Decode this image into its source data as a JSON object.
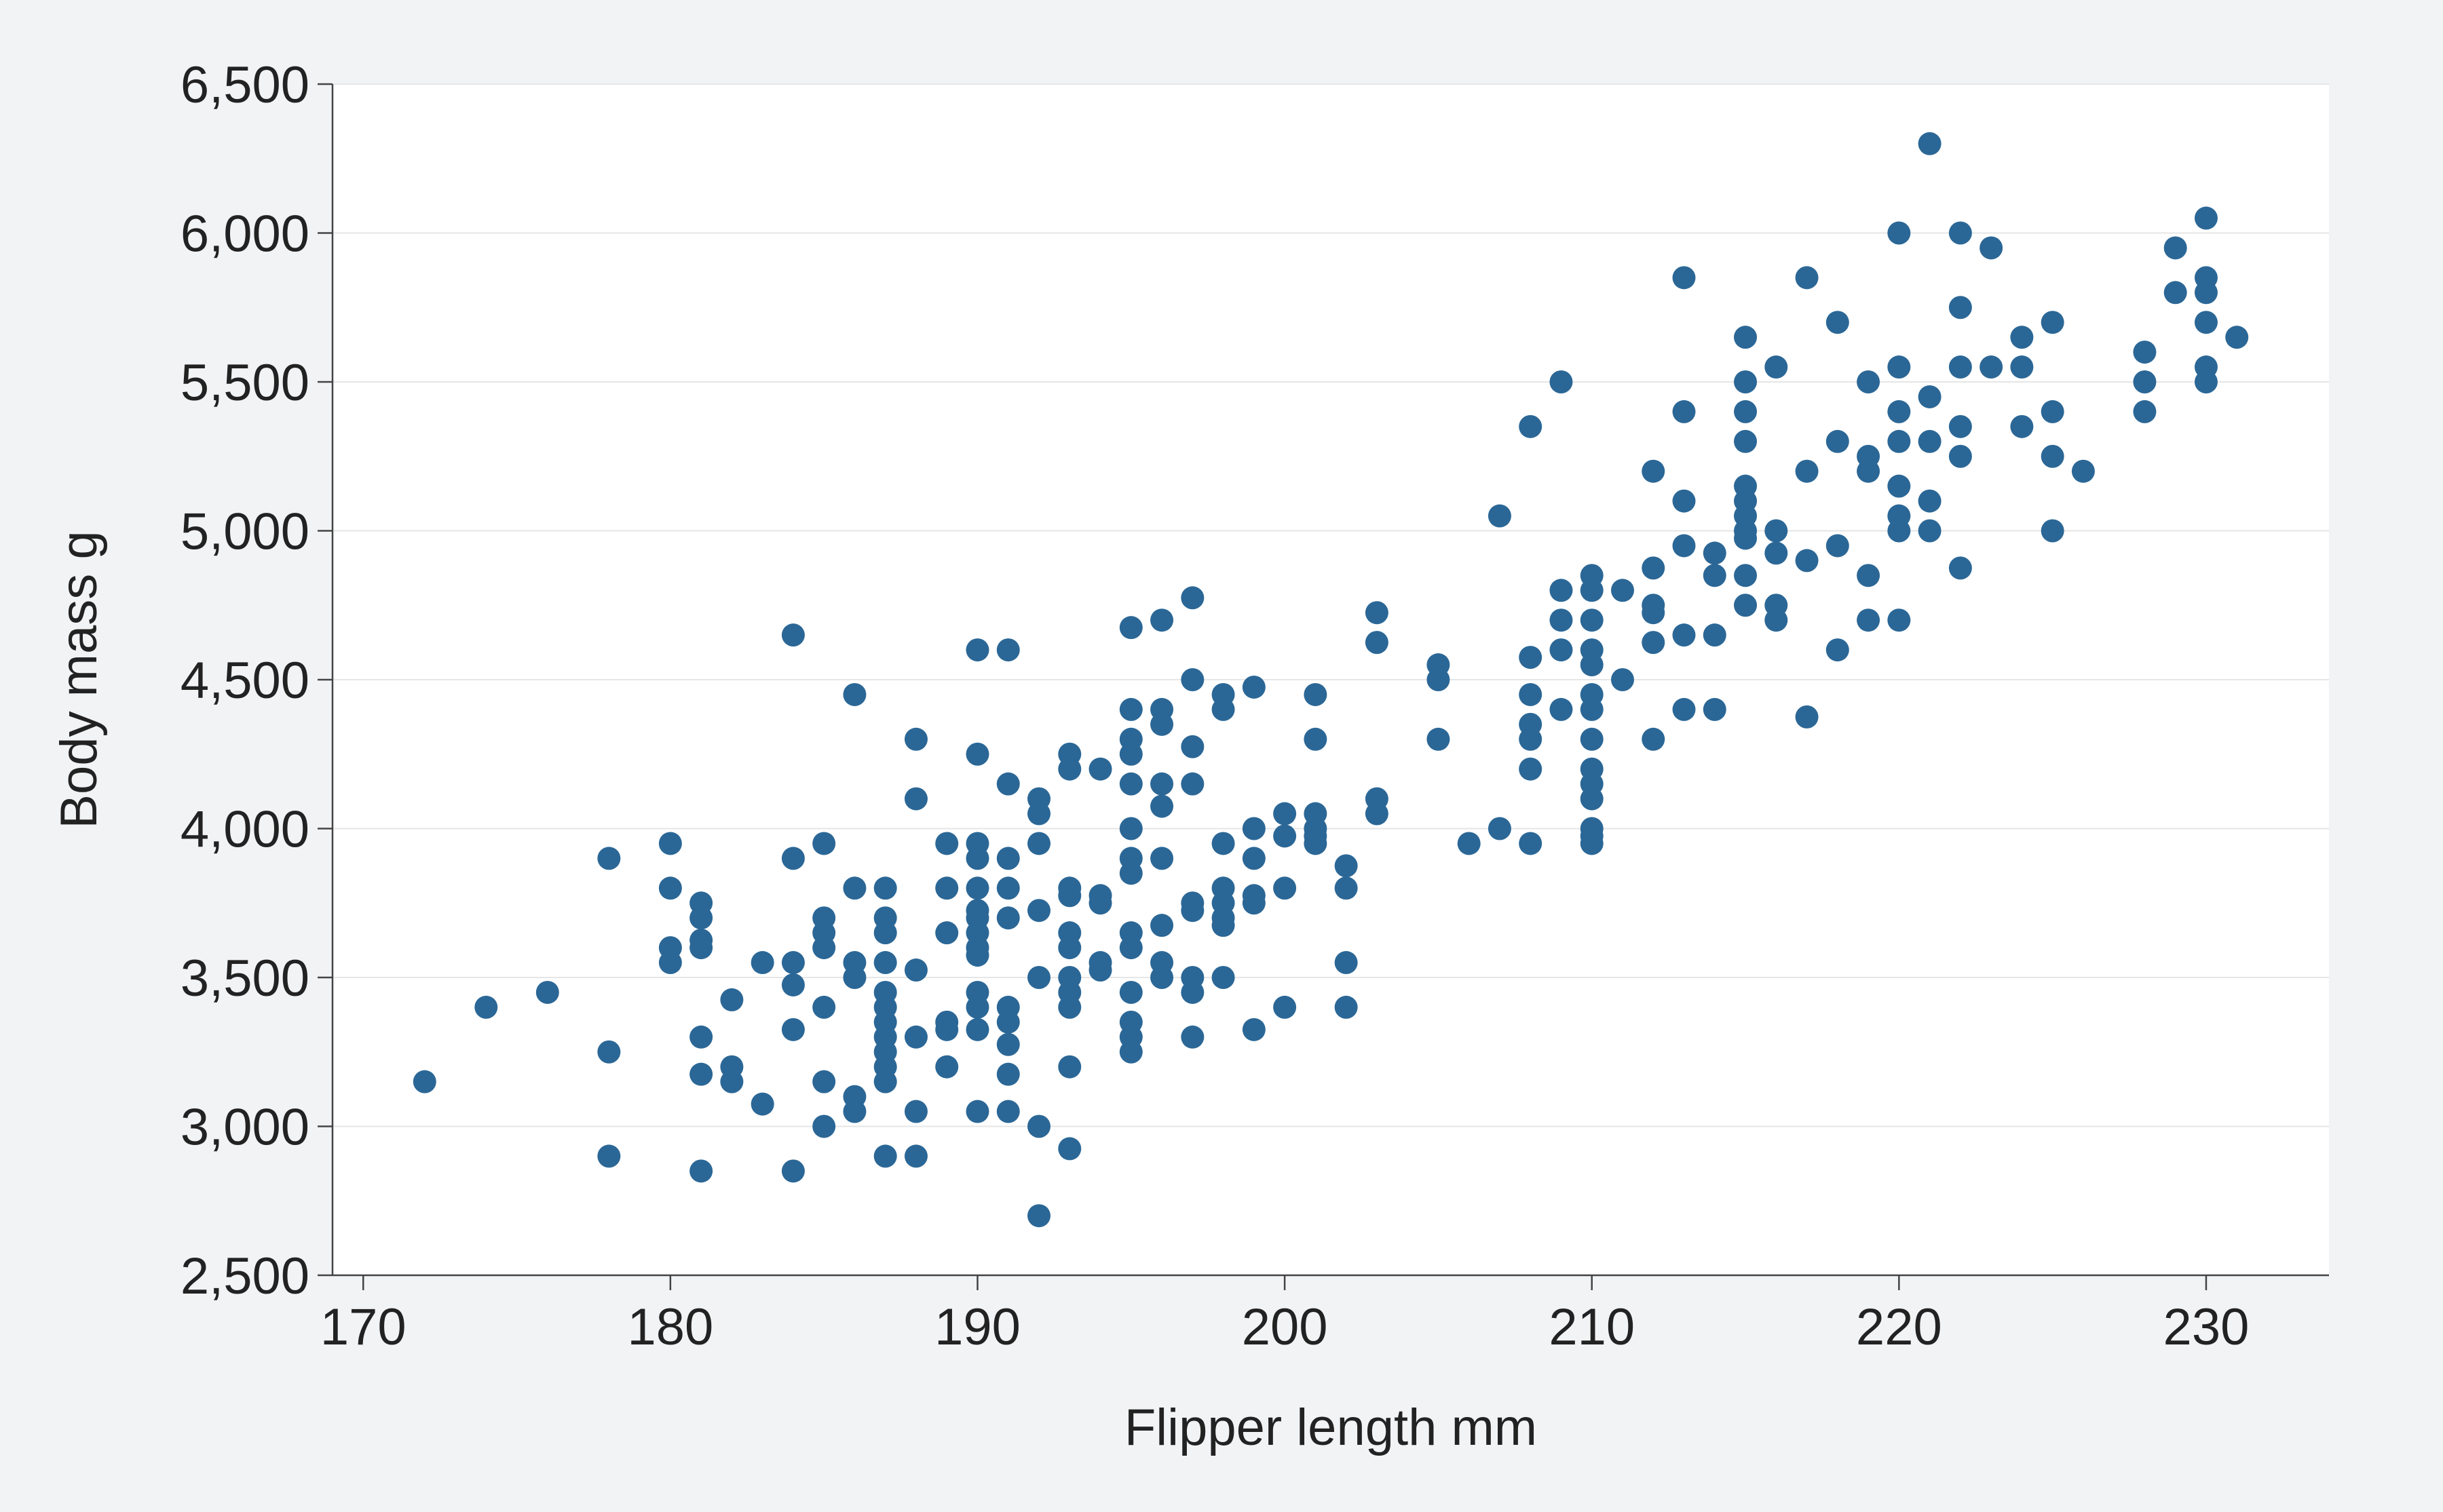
{
  "chart_data": {
    "type": "scatter",
    "title": "",
    "xlabel": "Flipper length mm",
    "ylabel": "Body mass g",
    "xlim": [
      169,
      234
    ],
    "ylim": [
      2500,
      6500
    ],
    "x_ticks": [
      170,
      180,
      190,
      200,
      210,
      220,
      230
    ],
    "y_ticks": [
      2500,
      3000,
      3500,
      4000,
      4500,
      5000,
      5500,
      6000,
      6500
    ],
    "x_tick_labels": [
      "170",
      "180",
      "190",
      "200",
      "210",
      "220",
      "230"
    ],
    "y_tick_labels": [
      "2,500",
      "3,000",
      "3,500",
      "4,000",
      "4,500",
      "5,000",
      "5,500",
      "6,000",
      "6,500"
    ],
    "grid": "horizontal",
    "legend": "none",
    "colors": {
      "marker": "#2b6796",
      "plot_background": "#ffffff",
      "figure_background": "#f2f3f5",
      "gridline": "#e6e6e6",
      "axis": "#444444"
    },
    "points": [
      [
        172,
        3150
      ],
      [
        174,
        3400
      ],
      [
        176,
        3450
      ],
      [
        178,
        3900
      ],
      [
        178,
        3250
      ],
      [
        178,
        2900
      ],
      [
        180,
        3950
      ],
      [
        180,
        3800
      ],
      [
        180,
        3600
      ],
      [
        180,
        3550
      ],
      [
        181,
        3750
      ],
      [
        181,
        3700
      ],
      [
        181,
        3625
      ],
      [
        181,
        3600
      ],
      [
        181,
        3300
      ],
      [
        181,
        3175
      ],
      [
        181,
        2850
      ],
      [
        182,
        3425
      ],
      [
        182,
        3200
      ],
      [
        182,
        3150
      ],
      [
        183,
        3550
      ],
      [
        183,
        3075
      ],
      [
        184,
        4650
      ],
      [
        184,
        3900
      ],
      [
        184,
        3550
      ],
      [
        184,
        3475
      ],
      [
        184,
        3325
      ],
      [
        184,
        2850
      ],
      [
        185,
        3950
      ],
      [
        185,
        3700
      ],
      [
        185,
        3650
      ],
      [
        185,
        3600
      ],
      [
        185,
        3400
      ],
      [
        185,
        3150
      ],
      [
        185,
        3000
      ],
      [
        186,
        4450
      ],
      [
        186,
        3800
      ],
      [
        186,
        3550
      ],
      [
        186,
        3500
      ],
      [
        186,
        3100
      ],
      [
        186,
        3050
      ],
      [
        187,
        3800
      ],
      [
        187,
        3700
      ],
      [
        187,
        3650
      ],
      [
        187,
        3550
      ],
      [
        187,
        3450
      ],
      [
        187,
        3400
      ],
      [
        187,
        3350
      ],
      [
        187,
        3300
      ],
      [
        187,
        3250
      ],
      [
        187,
        3200
      ],
      [
        187,
        3150
      ],
      [
        187,
        2900
      ],
      [
        188,
        4300
      ],
      [
        188,
        4100
      ],
      [
        188,
        3525
      ],
      [
        188,
        3300
      ],
      [
        188,
        3050
      ],
      [
        188,
        2900
      ],
      [
        189,
        3950
      ],
      [
        189,
        3800
      ],
      [
        189,
        3650
      ],
      [
        189,
        3350
      ],
      [
        189,
        3325
      ],
      [
        189,
        3200
      ],
      [
        190,
        4600
      ],
      [
        190,
        4250
      ],
      [
        190,
        3950
      ],
      [
        190,
        3900
      ],
      [
        190,
        3800
      ],
      [
        190,
        3725
      ],
      [
        190,
        3700
      ],
      [
        190,
        3650
      ],
      [
        190,
        3600
      ],
      [
        190,
        3575
      ],
      [
        190,
        3450
      ],
      [
        190,
        3400
      ],
      [
        190,
        3325
      ],
      [
        190,
        3050
      ],
      [
        191,
        4600
      ],
      [
        191,
        4150
      ],
      [
        191,
        3900
      ],
      [
        191,
        3800
      ],
      [
        191,
        3700
      ],
      [
        191,
        3400
      ],
      [
        191,
        3350
      ],
      [
        191,
        3275
      ],
      [
        191,
        3175
      ],
      [
        191,
        3050
      ],
      [
        192,
        4100
      ],
      [
        192,
        4050
      ],
      [
        192,
        3950
      ],
      [
        192,
        3725
      ],
      [
        192,
        3500
      ],
      [
        192,
        3000
      ],
      [
        192,
        2700
      ],
      [
        193,
        4250
      ],
      [
        193,
        4200
      ],
      [
        193,
        3800
      ],
      [
        193,
        3775
      ],
      [
        193,
        3650
      ],
      [
        193,
        3600
      ],
      [
        193,
        3500
      ],
      [
        193,
        3450
      ],
      [
        193,
        3400
      ],
      [
        193,
        3200
      ],
      [
        193,
        2925
      ],
      [
        194,
        4200
      ],
      [
        194,
        3775
      ],
      [
        194,
        3750
      ],
      [
        194,
        3550
      ],
      [
        194,
        3525
      ],
      [
        195,
        4675
      ],
      [
        195,
        4400
      ],
      [
        195,
        4300
      ],
      [
        195,
        4250
      ],
      [
        195,
        4150
      ],
      [
        195,
        4000
      ],
      [
        195,
        3900
      ],
      [
        195,
        3850
      ],
      [
        195,
        3650
      ],
      [
        195,
        3600
      ],
      [
        195,
        3450
      ],
      [
        195,
        3350
      ],
      [
        195,
        3300
      ],
      [
        195,
        3250
      ],
      [
        196,
        4700
      ],
      [
        196,
        4400
      ],
      [
        196,
        4350
      ],
      [
        196,
        4150
      ],
      [
        196,
        4075
      ],
      [
        196,
        3900
      ],
      [
        196,
        3675
      ],
      [
        196,
        3550
      ],
      [
        196,
        3500
      ],
      [
        197,
        4775
      ],
      [
        197,
        4500
      ],
      [
        197,
        4275
      ],
      [
        197,
        4150
      ],
      [
        197,
        3750
      ],
      [
        197,
        3725
      ],
      [
        197,
        3500
      ],
      [
        197,
        3450
      ],
      [
        197,
        3300
      ],
      [
        198,
        4450
      ],
      [
        198,
        4400
      ],
      [
        198,
        3950
      ],
      [
        198,
        3800
      ],
      [
        198,
        3750
      ],
      [
        198,
        3700
      ],
      [
        198,
        3675
      ],
      [
        198,
        3500
      ],
      [
        199,
        4475
      ],
      [
        199,
        4000
      ],
      [
        199,
        3900
      ],
      [
        199,
        3775
      ],
      [
        199,
        3750
      ],
      [
        199,
        3325
      ],
      [
        200,
        4050
      ],
      [
        200,
        3975
      ],
      [
        200,
        3800
      ],
      [
        200,
        3400
      ],
      [
        201,
        4450
      ],
      [
        201,
        4300
      ],
      [
        201,
        4050
      ],
      [
        201,
        4000
      ],
      [
        201,
        3975
      ],
      [
        201,
        3950
      ],
      [
        202,
        3875
      ],
      [
        202,
        3800
      ],
      [
        202,
        3550
      ],
      [
        202,
        3400
      ],
      [
        203,
        4725
      ],
      [
        203,
        4625
      ],
      [
        203,
        4100
      ],
      [
        203,
        4050
      ],
      [
        205,
        4550
      ],
      [
        205,
        4500
      ],
      [
        205,
        4300
      ],
      [
        206,
        3950
      ],
      [
        207,
        5050
      ],
      [
        207,
        4000
      ],
      [
        208,
        5350
      ],
      [
        208,
        4575
      ],
      [
        208,
        4450
      ],
      [
        208,
        4350
      ],
      [
        208,
        4300
      ],
      [
        208,
        4200
      ],
      [
        208,
        3950
      ],
      [
        209,
        5500
      ],
      [
        209,
        4800
      ],
      [
        209,
        4700
      ],
      [
        209,
        4600
      ],
      [
        209,
        4400
      ],
      [
        210,
        4850
      ],
      [
        210,
        4800
      ],
      [
        210,
        4700
      ],
      [
        210,
        4600
      ],
      [
        210,
        4550
      ],
      [
        210,
        4450
      ],
      [
        210,
        4400
      ],
      [
        210,
        4300
      ],
      [
        210,
        4200
      ],
      [
        210,
        4150
      ],
      [
        210,
        4100
      ],
      [
        210,
        4000
      ],
      [
        210,
        3975
      ],
      [
        210,
        3950
      ],
      [
        211,
        4800
      ],
      [
        211,
        4500
      ],
      [
        212,
        5200
      ],
      [
        212,
        4875
      ],
      [
        212,
        4750
      ],
      [
        212,
        4725
      ],
      [
        212,
        4625
      ],
      [
        212,
        4300
      ],
      [
        213,
        5850
      ],
      [
        213,
        5400
      ],
      [
        213,
        5100
      ],
      [
        213,
        4950
      ],
      [
        213,
        4650
      ],
      [
        213,
        4400
      ],
      [
        214,
        4925
      ],
      [
        214,
        4850
      ],
      [
        214,
        4650
      ],
      [
        214,
        4400
      ],
      [
        215,
        5650
      ],
      [
        215,
        5500
      ],
      [
        215,
        5400
      ],
      [
        215,
        5300
      ],
      [
        215,
        5150
      ],
      [
        215,
        5100
      ],
      [
        215,
        5050
      ],
      [
        215,
        5000
      ],
      [
        215,
        4975
      ],
      [
        215,
        4850
      ],
      [
        215,
        4750
      ],
      [
        216,
        5550
      ],
      [
        216,
        5000
      ],
      [
        216,
        4925
      ],
      [
        216,
        4750
      ],
      [
        216,
        4700
      ],
      [
        217,
        5850
      ],
      [
        217,
        5200
      ],
      [
        217,
        4900
      ],
      [
        217,
        4375
      ],
      [
        218,
        5700
      ],
      [
        218,
        5300
      ],
      [
        218,
        4950
      ],
      [
        218,
        4600
      ],
      [
        219,
        5500
      ],
      [
        219,
        5250
      ],
      [
        219,
        5200
      ],
      [
        219,
        4850
      ],
      [
        219,
        4700
      ],
      [
        220,
        6000
      ],
      [
        220,
        5550
      ],
      [
        220,
        5400
      ],
      [
        220,
        5300
      ],
      [
        220,
        5150
      ],
      [
        220,
        5050
      ],
      [
        220,
        5000
      ],
      [
        220,
        4700
      ],
      [
        221,
        6300
      ],
      [
        221,
        5450
      ],
      [
        221,
        5300
      ],
      [
        221,
        5100
      ],
      [
        221,
        5000
      ],
      [
        222,
        6000
      ],
      [
        222,
        5750
      ],
      [
        222,
        5550
      ],
      [
        222,
        5350
      ],
      [
        222,
        5250
      ],
      [
        222,
        4875
      ],
      [
        223,
        5950
      ],
      [
        223,
        5550
      ],
      [
        224,
        5650
      ],
      [
        224,
        5550
      ],
      [
        224,
        5350
      ],
      [
        225,
        5700
      ],
      [
        225,
        5400
      ],
      [
        225,
        5250
      ],
      [
        225,
        5000
      ],
      [
        226,
        5200
      ],
      [
        228,
        5600
      ],
      [
        228,
        5500
      ],
      [
        228,
        5400
      ],
      [
        229,
        5950
      ],
      [
        229,
        5800
      ],
      [
        230,
        6050
      ],
      [
        230,
        5850
      ],
      [
        230,
        5800
      ],
      [
        230,
        5700
      ],
      [
        230,
        5550
      ],
      [
        230,
        5500
      ],
      [
        231,
        5650
      ]
    ]
  }
}
